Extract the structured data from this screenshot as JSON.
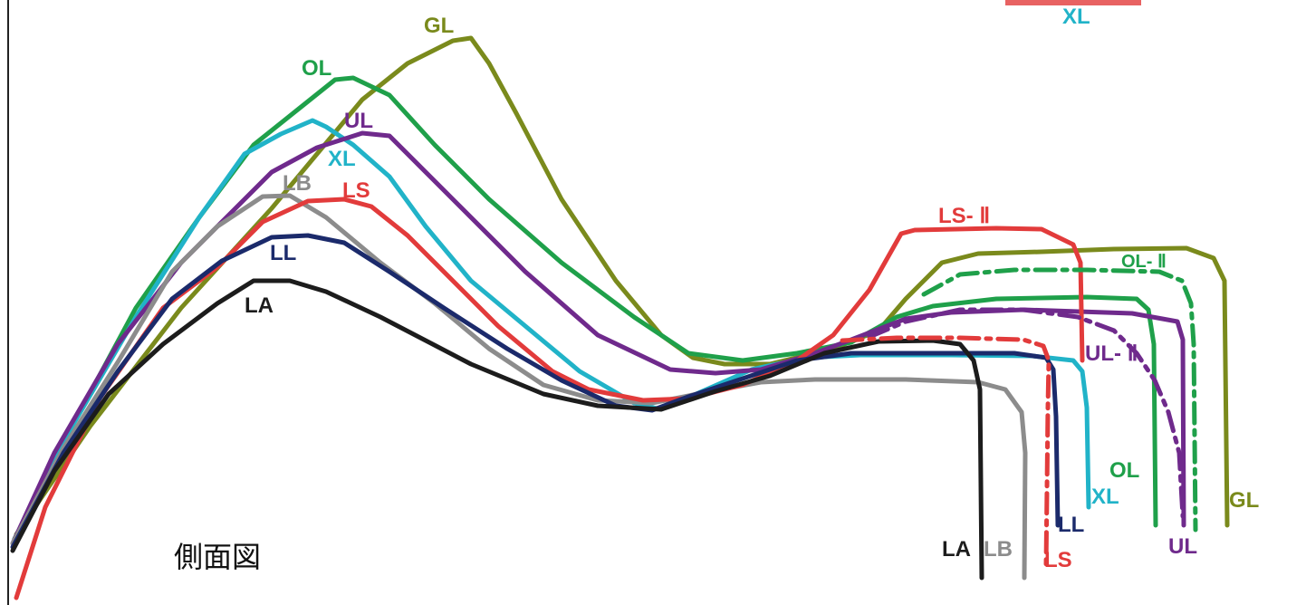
{
  "diagram": {
    "caption": "側面図",
    "top_partial_label": "XL",
    "labels": {
      "GL": "GL",
      "OL": "OL",
      "UL": "UL",
      "XL": "XL",
      "LB": "LB",
      "LS": "LS",
      "LL": "LL",
      "LA": "LA",
      "LS2": "LS- Ⅱ",
      "OL2": "OL- Ⅱ",
      "UL2": "UL- Ⅱ"
    },
    "colors": {
      "GL": "#7a8a1c",
      "OL": "#1fa04a",
      "UL": "#6f2a8c",
      "XL": "#21b3c8",
      "LB": "#8c8c8c",
      "LS": "#e23b3b",
      "LL": "#1b2a6b",
      "LA": "#1c1c1c"
    }
  }
}
